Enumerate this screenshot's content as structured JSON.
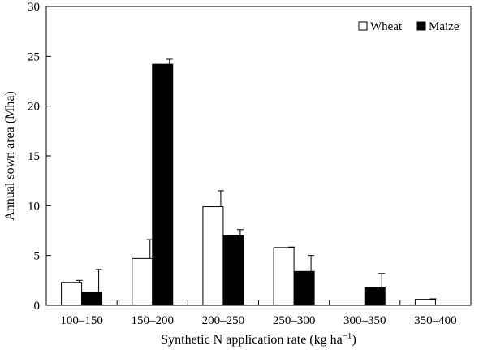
{
  "chart_data": {
    "type": "bar",
    "xlabel": "Synthetic N application rate (kg ha",
    "xlabel_sup": "−1",
    "xlabel_tail": ")",
    "ylabel": "Annual sown area (Mha)",
    "ylim": [
      0,
      30
    ],
    "yticks": [
      0,
      5,
      10,
      15,
      20,
      25,
      30
    ],
    "categories": [
      "100–150",
      "150–200",
      "200–250",
      "250–300",
      "300–350",
      "350–400"
    ],
    "series": [
      {
        "name": "Wheat",
        "color": "#ffffff",
        "values": [
          2.3,
          4.7,
          9.9,
          5.8,
          0,
          0.6
        ],
        "errors": [
          0.2,
          1.9,
          1.6,
          0.05,
          0,
          0.05
        ]
      },
      {
        "name": "Maize",
        "color": "#000000",
        "values": [
          1.3,
          24.2,
          7.0,
          3.4,
          1.8,
          0
        ],
        "errors": [
          2.3,
          0.5,
          0.6,
          1.6,
          1.4,
          0
        ]
      }
    ],
    "legend_position": "top-right",
    "grid": false
  }
}
